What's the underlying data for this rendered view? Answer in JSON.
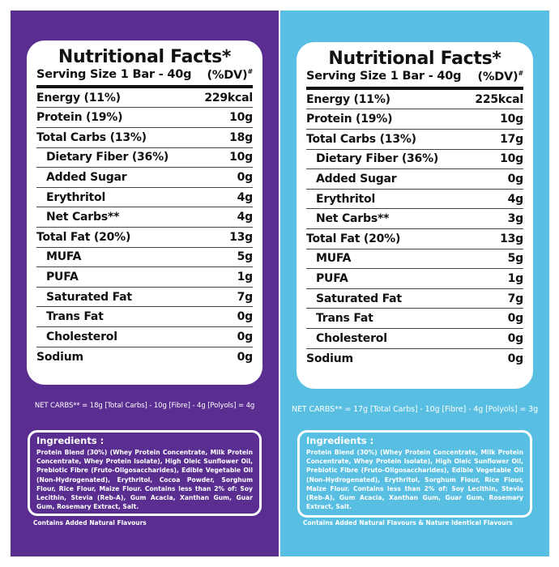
{
  "panels": [
    {
      "title": "Nutritional Facts*",
      "serving": "Serving Size 1 Bar - 40g",
      "dv": "(%DV)",
      "dv_mark": "#",
      "rows": [
        {
          "label": "Energy (11%)",
          "value": "229kcal",
          "indent": false
        },
        {
          "label": "Protein (19%)",
          "value": "10g",
          "indent": false
        },
        {
          "label": "Total Carbs (13%)",
          "value": "18g",
          "indent": false
        },
        {
          "label": "Dietary Fiber (36%)",
          "value": "10g",
          "indent": true
        },
        {
          "label": "Added Sugar",
          "value": "0g",
          "indent": true
        },
        {
          "label": "Erythritol",
          "value": "4g",
          "indent": true
        },
        {
          "label": "Net Carbs**",
          "value": "4g",
          "indent": true
        },
        {
          "label": "Total Fat (20%)",
          "value": "13g",
          "indent": false
        },
        {
          "label": "MUFA",
          "value": "5g",
          "indent": true
        },
        {
          "label": "PUFA",
          "value": "1g",
          "indent": true
        },
        {
          "label": "Saturated Fat",
          "value": "7g",
          "indent": true
        },
        {
          "label": "Trans Fat",
          "value": "0g",
          "indent": true
        },
        {
          "label": "Cholesterol",
          "value": "0g",
          "indent": true
        },
        {
          "label": "Sodium",
          "value": "0g",
          "indent": false
        }
      ],
      "netcarbs_note": "NET CARBS** = 18g [Total Carbs] - 10g [Fibre] - 4g [Polyols] = 4g",
      "ingredients_title": "Ingredients :",
      "ingredients": "Protein Blend (30%) (Whey Protein Concentrate, Milk Protein Concentrate, Whey Protein Isolate), High Oleic Sunflower Oil, Prebiotic Fibre (Fruto-Oligosaccharides), Edible Vegetable Oil (Non-Hydrogenated), Erythritol, Cocoa Powder, Sorghum Flour, Rice Flour, Maize Flour. Contains less than 2% of: Soy Lecithin, Stevia (Reb-A), Gum Acacia, Xanthan Gum, Guar Gum, Rosemary Extract, Salt.",
      "footer": "Contains Added Natural Flavours"
    },
    {
      "title": "Nutritional Facts*",
      "serving": "Serving Size 1 Bar - 40g",
      "dv": "(%DV)",
      "dv_mark": "#",
      "rows": [
        {
          "label": "Energy (11%)",
          "value": "225kcal",
          "indent": false
        },
        {
          "label": "Protein (19%)",
          "value": "10g",
          "indent": false
        },
        {
          "label": "Total Carbs (13%)",
          "value": "17g",
          "indent": false
        },
        {
          "label": "Dietary Fiber (36%)",
          "value": "10g",
          "indent": true
        },
        {
          "label": "Added Sugar",
          "value": "0g",
          "indent": true
        },
        {
          "label": "Erythritol",
          "value": "4g",
          "indent": true
        },
        {
          "label": "Net Carbs**",
          "value": "3g",
          "indent": true
        },
        {
          "label": "Total Fat (20%)",
          "value": "13g",
          "indent": false
        },
        {
          "label": "MUFA",
          "value": "5g",
          "indent": true
        },
        {
          "label": "PUFA",
          "value": "1g",
          "indent": true
        },
        {
          "label": "Saturated Fat",
          "value": "7g",
          "indent": true
        },
        {
          "label": "Trans Fat",
          "value": "0g",
          "indent": true
        },
        {
          "label": "Cholesterol",
          "value": "0g",
          "indent": true
        },
        {
          "label": "Sodium",
          "value": "0g",
          "indent": false
        }
      ],
      "netcarbs_note": "NET CARBS** = 17g [Total Carbs] - 10g [Fibre] - 4g [Polyols] = 3g",
      "ingredients_title": "Ingredients :",
      "ingredients": "Protein Blend (30%) (Whey Protein Concentrate, Milk Protein Concentrate, Whey Protein Isolate), High Oleic Sunflower Oil, Prebiotic Fibre (Fruto-Oligosaccharides), Edible Vegetable Oil (Non-Hydrogenated), Erythritol, Sorghum Flour, Rice Flour, Maize Flour. Contains less than 2% of: Soy Lecithin, Stevia (Reb-A), Gum Acacia, Xanthan Gum, Guar Gum, Rosemary Extract, Salt.",
      "footer": "Contains Added Natural Flavours & Nature Identical Flavours"
    }
  ],
  "colors": {
    "left_panel": "#5a2d91",
    "right_panel": "#58bfe3",
    "card": "#ffffff"
  }
}
